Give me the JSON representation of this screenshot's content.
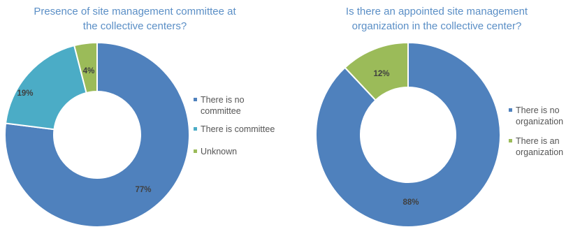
{
  "chart_data": [
    {
      "type": "pie",
      "title": "Presence of site management committee at\nthe collective centers?",
      "slices": [
        {
          "label": "There is no committee",
          "legend_lines": [
            "There is no",
            "committee"
          ],
          "value": 77,
          "display": "77%",
          "color": "#4f81bd"
        },
        {
          "label": "There is committee",
          "legend_lines": [
            "There is committee"
          ],
          "value": 19,
          "display": "19%",
          "color": "#4bacc6"
        },
        {
          "label": "Unknown",
          "legend_lines": [
            "Unknown"
          ],
          "value": 4,
          "display": "4%",
          "color": "#9bbb59"
        }
      ],
      "donut": true,
      "legend_position": "right"
    },
    {
      "type": "pie",
      "title": "Is there an appointed site management\norganization in the collective center?",
      "slices": [
        {
          "label": "There is no organization",
          "legend_lines": [
            "There is no",
            "organization"
          ],
          "value": 88,
          "display": "88%",
          "color": "#4f81bd"
        },
        {
          "label": "There is an organization",
          "legend_lines": [
            "There is an",
            "organization"
          ],
          "value": 12,
          "display": "12%",
          "color": "#9bbb59"
        }
      ],
      "donut": true,
      "legend_position": "right"
    }
  ]
}
